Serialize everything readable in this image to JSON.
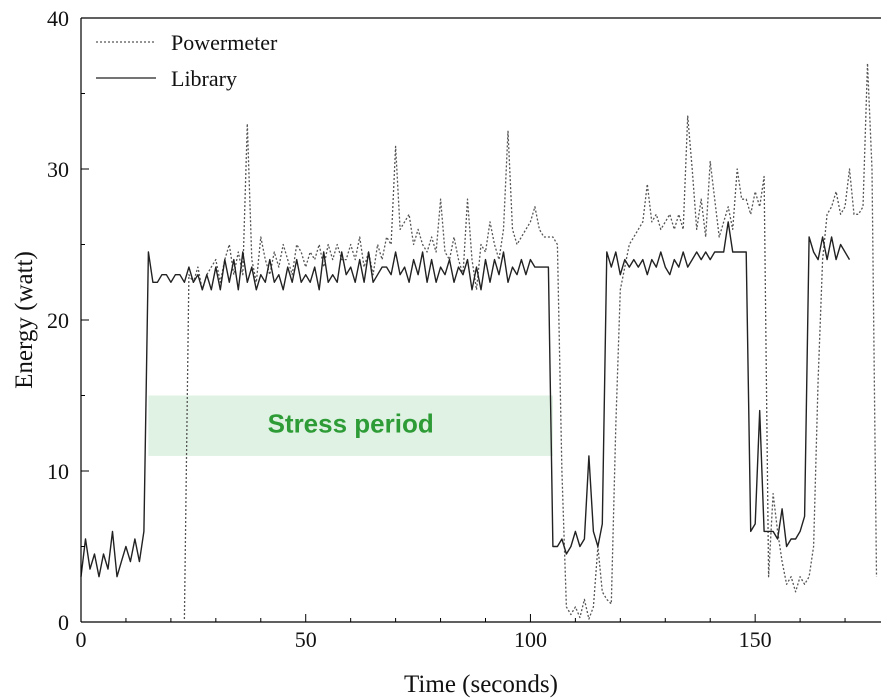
{
  "chart_data": {
    "type": "line",
    "xlabel": "Time (seconds)",
    "ylabel": "Energy (watt)",
    "xlim": [
      0,
      178
    ],
    "ylim": [
      0,
      40
    ],
    "xticks": [
      0,
      50,
      100,
      150
    ],
    "yticks": [
      0,
      10,
      20,
      30,
      40
    ],
    "legend_position": "top-left",
    "grid": false,
    "series": [
      {
        "name": "Powermeter",
        "style": "dotted",
        "color": "#555555",
        "points": [
          [
            23,
            0.2
          ],
          [
            24,
            23
          ],
          [
            25,
            22.5
          ],
          [
            26,
            23.5
          ],
          [
            27,
            22
          ],
          [
            28,
            23
          ],
          [
            29,
            23.5
          ],
          [
            30,
            24
          ],
          [
            31,
            22.5
          ],
          [
            32,
            24
          ],
          [
            33,
            25
          ],
          [
            34,
            23
          ],
          [
            35,
            24.5
          ],
          [
            36,
            23
          ],
          [
            37,
            33
          ],
          [
            38,
            24
          ],
          [
            39,
            22.5
          ],
          [
            40,
            25.5
          ],
          [
            41,
            24
          ],
          [
            42,
            23
          ],
          [
            43,
            24.5
          ],
          [
            44,
            23.5
          ],
          [
            45,
            25
          ],
          [
            46,
            24
          ],
          [
            47,
            23
          ],
          [
            48,
            25
          ],
          [
            49,
            24.5
          ],
          [
            50,
            23.5
          ],
          [
            51,
            24.5
          ],
          [
            52,
            24
          ],
          [
            53,
            25
          ],
          [
            54,
            23.5
          ],
          [
            55,
            25
          ],
          [
            56,
            24
          ],
          [
            57,
            25
          ],
          [
            58,
            24
          ],
          [
            59,
            24
          ],
          [
            60,
            25
          ],
          [
            61,
            24
          ],
          [
            62,
            25.5
          ],
          [
            63,
            23.5
          ],
          [
            64,
            24.5
          ],
          [
            65,
            23
          ],
          [
            66,
            25
          ],
          [
            67,
            24
          ],
          [
            68,
            25.5
          ],
          [
            69,
            25
          ],
          [
            70,
            31.5
          ],
          [
            71,
            26
          ],
          [
            72,
            26.5
          ],
          [
            73,
            27
          ],
          [
            74,
            25
          ],
          [
            75,
            26
          ],
          [
            76,
            25
          ],
          [
            77,
            24.5
          ],
          [
            78,
            25.5
          ],
          [
            79,
            24.5
          ],
          [
            80,
            28
          ],
          [
            81,
            24.5
          ],
          [
            82,
            24
          ],
          [
            83,
            25.5
          ],
          [
            84,
            24
          ],
          [
            85,
            23
          ],
          [
            86,
            28
          ],
          [
            87,
            24
          ],
          [
            88,
            22
          ],
          [
            89,
            25
          ],
          [
            90,
            24.5
          ],
          [
            91,
            26.5
          ],
          [
            92,
            25
          ],
          [
            93,
            24
          ],
          [
            94,
            26
          ],
          [
            95,
            32.5
          ],
          [
            96,
            26
          ],
          [
            97,
            25
          ],
          [
            98,
            25.5
          ],
          [
            99,
            26
          ],
          [
            100,
            26.5
          ],
          [
            101,
            27.5
          ],
          [
            102,
            26
          ],
          [
            103,
            25.5
          ],
          [
            104,
            25.5
          ],
          [
            105,
            25.5
          ],
          [
            106,
            25
          ],
          [
            107,
            10
          ],
          [
            108,
            1
          ],
          [
            109,
            0.5
          ],
          [
            110,
            1
          ],
          [
            111,
            0.3
          ],
          [
            112,
            1.5
          ],
          [
            113,
            0.2
          ],
          [
            114,
            1
          ],
          [
            115,
            5
          ],
          [
            116,
            2
          ],
          [
            117,
            1.5
          ],
          [
            118,
            1.2
          ],
          [
            119,
            13
          ],
          [
            120,
            22
          ],
          [
            121,
            23.5
          ],
          [
            122,
            25
          ],
          [
            123,
            25.5
          ],
          [
            124,
            26
          ],
          [
            125,
            26.5
          ],
          [
            126,
            29
          ],
          [
            127,
            26.5
          ],
          [
            128,
            27
          ],
          [
            129,
            26
          ],
          [
            130,
            26.5
          ],
          [
            131,
            27
          ],
          [
            132,
            26
          ],
          [
            133,
            27
          ],
          [
            134,
            26
          ],
          [
            135,
            33.5
          ],
          [
            136,
            30
          ],
          [
            137,
            26
          ],
          [
            138,
            28
          ],
          [
            139,
            25.5
          ],
          [
            140,
            30.5
          ],
          [
            141,
            28
          ],
          [
            142,
            25.5
          ],
          [
            143,
            26.5
          ],
          [
            144,
            27.5
          ],
          [
            145,
            26
          ],
          [
            146,
            30
          ],
          [
            147,
            28
          ],
          [
            148,
            28
          ],
          [
            149,
            27
          ],
          [
            150,
            28.5
          ],
          [
            151,
            27.5
          ],
          [
            152,
            29.5
          ],
          [
            153,
            3
          ],
          [
            154,
            8.5
          ],
          [
            155,
            6
          ],
          [
            156,
            4
          ],
          [
            157,
            2.5
          ],
          [
            158,
            3
          ],
          [
            159,
            2
          ],
          [
            160,
            3
          ],
          [
            161,
            2.5
          ],
          [
            162,
            3
          ],
          [
            163,
            5
          ],
          [
            164,
            16
          ],
          [
            165,
            24
          ],
          [
            166,
            27
          ],
          [
            167,
            27.5
          ],
          [
            168,
            28.5
          ],
          [
            169,
            27
          ],
          [
            170,
            27.5
          ],
          [
            171,
            30
          ],
          [
            172,
            27
          ],
          [
            173,
            27
          ],
          [
            174,
            27.5
          ],
          [
            175,
            37
          ],
          [
            176,
            30
          ],
          [
            177,
            3
          ]
        ]
      },
      {
        "name": "Library",
        "style": "solid",
        "color": "#222222",
        "points": [
          [
            0,
            3
          ],
          [
            1,
            5.5
          ],
          [
            2,
            3.5
          ],
          [
            3,
            4.5
          ],
          [
            4,
            3
          ],
          [
            5,
            4.5
          ],
          [
            6,
            3.5
          ],
          [
            7,
            6
          ],
          [
            8,
            3
          ],
          [
            9,
            4
          ],
          [
            10,
            5
          ],
          [
            11,
            4
          ],
          [
            12,
            5.5
          ],
          [
            13,
            4
          ],
          [
            14,
            6
          ],
          [
            15,
            24.5
          ],
          [
            16,
            22.5
          ],
          [
            17,
            22.5
          ],
          [
            18,
            23
          ],
          [
            19,
            23
          ],
          [
            20,
            22.5
          ],
          [
            21,
            23
          ],
          [
            22,
            23
          ],
          [
            23,
            22.5
          ],
          [
            24,
            23.5
          ],
          [
            25,
            22.5
          ],
          [
            26,
            23
          ],
          [
            27,
            22
          ],
          [
            28,
            23
          ],
          [
            29,
            22
          ],
          [
            30,
            23.5
          ],
          [
            31,
            22
          ],
          [
            32,
            24
          ],
          [
            33,
            22.5
          ],
          [
            34,
            24
          ],
          [
            35,
            22
          ],
          [
            36,
            24.5
          ],
          [
            37,
            22.5
          ],
          [
            38,
            23.5
          ],
          [
            39,
            22
          ],
          [
            40,
            23
          ],
          [
            41,
            22.5
          ],
          [
            42,
            24
          ],
          [
            43,
            22.5
          ],
          [
            44,
            23
          ],
          [
            45,
            22
          ],
          [
            46,
            23.5
          ],
          [
            47,
            22.5
          ],
          [
            48,
            24
          ],
          [
            49,
            22.5
          ],
          [
            50,
            23
          ],
          [
            51,
            22.5
          ],
          [
            52,
            23.5
          ],
          [
            53,
            22
          ],
          [
            54,
            24.5
          ],
          [
            55,
            22.5
          ],
          [
            56,
            23
          ],
          [
            57,
            22.5
          ],
          [
            58,
            24.5
          ],
          [
            59,
            23
          ],
          [
            60,
            23.5
          ],
          [
            61,
            22.5
          ],
          [
            62,
            24
          ],
          [
            63,
            22.5
          ],
          [
            64,
            24.5
          ],
          [
            65,
            22.5
          ],
          [
            66,
            23
          ],
          [
            67,
            23.5
          ],
          [
            68,
            23.5
          ],
          [
            69,
            23
          ],
          [
            70,
            24.5
          ],
          [
            71,
            23
          ],
          [
            72,
            23.5
          ],
          [
            73,
            22.5
          ],
          [
            74,
            24
          ],
          [
            75,
            23
          ],
          [
            76,
            24.5
          ],
          [
            77,
            22.5
          ],
          [
            78,
            24
          ],
          [
            79,
            22.5
          ],
          [
            80,
            23.5
          ],
          [
            81,
            23
          ],
          [
            82,
            24
          ],
          [
            83,
            22.5
          ],
          [
            84,
            23.5
          ],
          [
            85,
            23
          ],
          [
            86,
            24
          ],
          [
            87,
            22
          ],
          [
            88,
            23.5
          ],
          [
            89,
            22
          ],
          [
            90,
            24
          ],
          [
            91,
            22.5
          ],
          [
            92,
            24
          ],
          [
            93,
            23
          ],
          [
            94,
            24.5
          ],
          [
            95,
            22.5
          ],
          [
            96,
            23.5
          ],
          [
            97,
            23
          ],
          [
            98,
            24
          ],
          [
            99,
            23
          ],
          [
            100,
            24
          ],
          [
            101,
            23.5
          ],
          [
            102,
            23.5
          ],
          [
            103,
            23.5
          ],
          [
            104,
            23.5
          ],
          [
            105,
            5
          ],
          [
            106,
            5
          ],
          [
            107,
            5.5
          ],
          [
            108,
            4.5
          ],
          [
            109,
            5
          ],
          [
            110,
            6
          ],
          [
            111,
            5
          ],
          [
            112,
            5.5
          ],
          [
            113,
            11
          ],
          [
            114,
            6
          ],
          [
            115,
            5
          ],
          [
            116,
            6.5
          ],
          [
            117,
            24.5
          ],
          [
            118,
            23.5
          ],
          [
            119,
            24.5
          ],
          [
            120,
            23
          ],
          [
            121,
            24
          ],
          [
            122,
            23.5
          ],
          [
            123,
            24
          ],
          [
            124,
            23.5
          ],
          [
            125,
            24
          ],
          [
            126,
            23
          ],
          [
            127,
            24
          ],
          [
            128,
            23.5
          ],
          [
            129,
            24.5
          ],
          [
            130,
            23.5
          ],
          [
            131,
            23
          ],
          [
            132,
            24
          ],
          [
            133,
            23.5
          ],
          [
            134,
            24.5
          ],
          [
            135,
            23.5
          ],
          [
            136,
            24
          ],
          [
            137,
            24.5
          ],
          [
            138,
            24
          ],
          [
            139,
            24.5
          ],
          [
            140,
            24
          ],
          [
            141,
            24.5
          ],
          [
            142,
            24.5
          ],
          [
            143,
            24.5
          ],
          [
            144,
            26.5
          ],
          [
            145,
            24.5
          ],
          [
            146,
            24.5
          ],
          [
            147,
            24.5
          ],
          [
            148,
            24.5
          ],
          [
            149,
            6
          ],
          [
            150,
            6.5
          ],
          [
            151,
            14
          ],
          [
            152,
            6
          ],
          [
            153,
            6
          ],
          [
            154,
            6
          ],
          [
            155,
            5.5
          ],
          [
            156,
            7.5
          ],
          [
            157,
            5
          ],
          [
            158,
            5.5
          ],
          [
            159,
            5.5
          ],
          [
            160,
            6
          ],
          [
            161,
            7
          ],
          [
            162,
            25.5
          ],
          [
            163,
            24.5
          ],
          [
            164,
            24
          ],
          [
            165,
            25.5
          ],
          [
            166,
            24
          ],
          [
            167,
            25.5
          ],
          [
            168,
            24
          ],
          [
            169,
            25
          ],
          [
            170,
            24.5
          ],
          [
            171,
            24
          ]
        ]
      }
    ],
    "annotation": {
      "text": "Stress period",
      "x_range": [
        15,
        105
      ],
      "y_range": [
        11,
        15
      ],
      "fill_color": "#dff2e3",
      "text_color": "#2e9c36"
    }
  }
}
